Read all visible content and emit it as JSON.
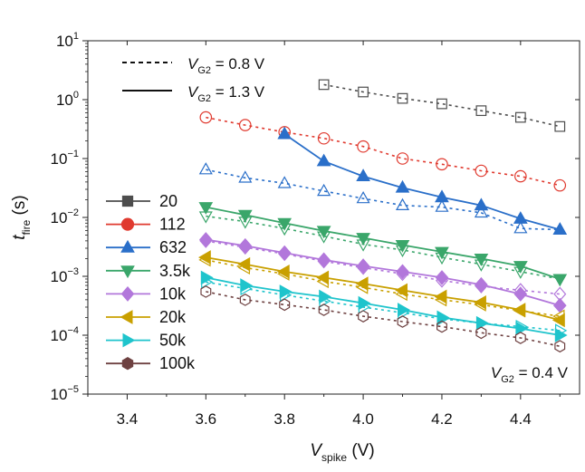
{
  "chart_data": {
    "type": "scatter",
    "title": "",
    "xlabel_main": "V",
    "xlabel_sub": "spike",
    "xlabel_unit": " (V)",
    "ylabel_main": "t",
    "ylabel_sub": "fire",
    "ylabel_unit": " (s)",
    "xlim": [
      3.3,
      4.55
    ],
    "ylim_log10": [
      -5,
      1
    ],
    "x_ticks": [
      3.4,
      3.6,
      3.8,
      4.0,
      4.2,
      4.4
    ],
    "x_tick_labels": [
      "3.4",
      "3.6",
      "3.8",
      "4.0",
      "4.2",
      "4.4"
    ],
    "y_ticks_exp": [
      1,
      0,
      -1,
      -2,
      -3,
      -4,
      -5
    ],
    "y_tick_base": "10",
    "y_tick_exp_labels": [
      "1",
      "0",
      "−1",
      "−2",
      "−3",
      "−4",
      "−5"
    ],
    "line_legend": [
      {
        "style": "dashed",
        "prefix": "V",
        "sub": "G2",
        "suffix": " = 0.8 V"
      },
      {
        "style": "solid",
        "prefix": "V",
        "sub": "G2",
        "suffix": " = 1.3 V"
      }
    ],
    "annotation": {
      "prefix": "V",
      "sub": "G2",
      "suffix": " = 0.4 V"
    },
    "series": [
      {
        "name": "20",
        "color": "#4d4d4d",
        "marker": "square",
        "x": [
          3.9,
          4.0,
          4.1,
          4.2,
          4.3,
          4.4,
          4.5
        ],
        "open_dashed": [
          1.8,
          1.35,
          1.05,
          0.85,
          0.65,
          0.5,
          0.35
        ],
        "filled_solid": []
      },
      {
        "name": "112",
        "color": "#e03a2f",
        "marker": "circle",
        "x": [
          3.6,
          3.7,
          3.8,
          3.9,
          4.0,
          4.1,
          4.2,
          4.3,
          4.4,
          4.5
        ],
        "open_dashed": [
          0.5,
          0.37,
          0.28,
          0.22,
          0.16,
          0.1,
          0.08,
          0.062,
          0.05,
          0.035
        ],
        "filled_solid": []
      },
      {
        "name": "632",
        "color": "#2a6fc9",
        "marker": "triangle-up",
        "x": [
          3.6,
          3.7,
          3.8,
          3.9,
          4.0,
          4.1,
          4.2,
          4.3,
          4.4,
          4.5
        ],
        "open_dashed": [
          0.065,
          0.047,
          0.038,
          0.028,
          0.021,
          0.016,
          0.015,
          0.012,
          0.0065,
          0.0062
        ],
        "filled_solid": [
          null,
          null,
          0.26,
          0.09,
          0.05,
          0.032,
          0.022,
          0.016,
          0.0095,
          0.0062
        ]
      },
      {
        "name": "3.5k",
        "color": "#3aa66a",
        "marker": "triangle-down",
        "x": [
          3.6,
          3.7,
          3.8,
          3.9,
          4.0,
          4.1,
          4.2,
          4.3,
          4.4,
          4.5
        ],
        "open_dashed": [
          0.0105,
          0.0085,
          0.0065,
          0.0048,
          0.0035,
          0.0028,
          0.0021,
          0.0016,
          0.0012,
          0.0009
        ],
        "filled_solid": [
          0.015,
          0.011,
          0.008,
          0.0059,
          0.0045,
          0.0034,
          0.0026,
          0.002,
          0.0015,
          0.0009
        ]
      },
      {
        "name": "10k",
        "color": "#b277db",
        "marker": "diamond",
        "x": [
          3.6,
          3.7,
          3.8,
          3.9,
          4.0,
          4.1,
          4.2,
          4.3,
          4.4,
          4.5
        ],
        "open_dashed": [
          0.004,
          0.0031,
          0.0024,
          0.0018,
          0.0014,
          0.0011,
          0.00085,
          0.00068,
          0.00058,
          0.0005
        ],
        "filled_solid": [
          0.0042,
          0.0033,
          0.0025,
          0.0019,
          0.0015,
          0.0012,
          0.00095,
          0.00072,
          0.0005,
          0.00032
        ]
      },
      {
        "name": "20k",
        "color": "#c9a000",
        "marker": "triangle-left",
        "x": [
          3.6,
          3.7,
          3.8,
          3.9,
          4.0,
          4.1,
          4.2,
          4.3,
          4.4,
          4.5
        ],
        "open_dashed": [
          0.0019,
          0.0014,
          0.0011,
          0.00082,
          0.00065,
          0.0005,
          0.0004,
          0.00033,
          0.00026,
          0.00021
        ],
        "filled_solid": [
          0.0021,
          0.0016,
          0.0012,
          0.00095,
          0.00075,
          0.00058,
          0.00045,
          0.00036,
          0.00027,
          0.00018
        ]
      },
      {
        "name": "50k",
        "color": "#1fc4cc",
        "marker": "triangle-right",
        "x": [
          3.6,
          3.7,
          3.8,
          3.9,
          4.0,
          4.1,
          4.2,
          4.3,
          4.4,
          4.5
        ],
        "open_dashed": [
          0.0008,
          0.00062,
          0.00048,
          0.00038,
          0.0003,
          0.00024,
          0.00019,
          0.00016,
          0.00014,
          0.00012
        ],
        "filled_solid": [
          0.00095,
          0.0007,
          0.00055,
          0.00045,
          0.00035,
          0.00027,
          0.0002,
          0.00016,
          0.00013,
          0.0001
        ]
      },
      {
        "name": "100k",
        "color": "#6e4141",
        "marker": "hexagon",
        "x": [
          3.6,
          3.7,
          3.8,
          3.9,
          4.0,
          4.1,
          4.2,
          4.3,
          4.4,
          4.5
        ],
        "open_dashed": [
          0.00055,
          0.0004,
          0.00033,
          0.00027,
          0.00021,
          0.00017,
          0.00014,
          0.00011,
          9e-05,
          6.5e-05
        ],
        "filled_solid": []
      }
    ]
  }
}
